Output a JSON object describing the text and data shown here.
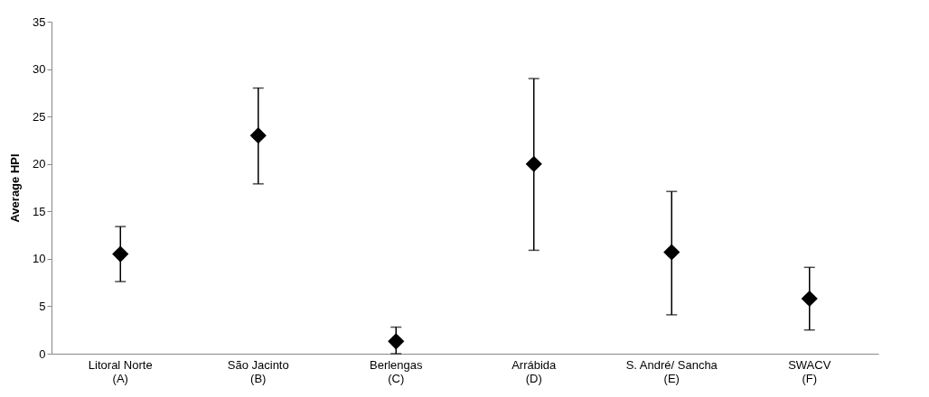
{
  "chart_data": {
    "type": "scatter",
    "ylabel": "Average HPI",
    "categories": [
      "Litoral Norte\n(A)",
      "São Jacinto\n(B)",
      "Berlengas\n(C)",
      "Arrábida\n(D)",
      "S. André/ Sancha\n(E)",
      "SWACV\n(F)"
    ],
    "series": [
      {
        "color": "#000000",
        "values": [
          10.5,
          23,
          1.3,
          20,
          10.7,
          5.8
        ],
        "errors": [
          [
            7.6,
            13.4
          ],
          [
            17.9,
            28
          ],
          [
            0,
            2.8
          ],
          [
            10.9,
            29
          ],
          [
            4.1,
            17.1
          ],
          [
            2.5,
            9.1
          ]
        ]
      }
    ],
    "ylim": [
      0,
      35
    ],
    "yticks": [
      0,
      5,
      10,
      15,
      20,
      25,
      30,
      35
    ],
    "marker": "diamond",
    "grid": false,
    "legend": false
  }
}
